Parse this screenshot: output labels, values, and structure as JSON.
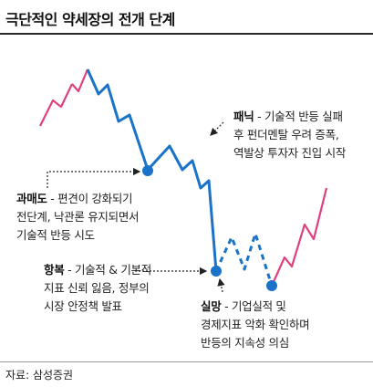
{
  "header": {
    "title": "극단적인 약세장의 전개 단계"
  },
  "footer": {
    "source": "자료: 삼성증권"
  },
  "colors": {
    "rise": "#e0407f",
    "fall": "#1a73c9",
    "arrow": "#222222"
  },
  "annotations": {
    "panic": {
      "term": "패닉",
      "desc": " - 기술적 반등 실패",
      "line2": "후 펀더멘탈 우려 증폭,",
      "line3": "역발상 투자자 진입 시작"
    },
    "overvalue": {
      "term": "과매도",
      "desc": " - 편견이 강화되기",
      "line2": "전단계, 낙관론 유지되면서",
      "line3": "기술적 반등 시도"
    },
    "surrender": {
      "term": "항복",
      "desc": " - 기술적 & 기본적",
      "line2": "지표 신뢰 잃음, 정부의",
      "line3": "시장 안정책 발표"
    },
    "disappoint": {
      "term": "실망",
      "desc": " - 기업실적 및",
      "line2": "경제지표 악화 확인하며",
      "line3": "반등의 지속성 의심"
    }
  }
}
